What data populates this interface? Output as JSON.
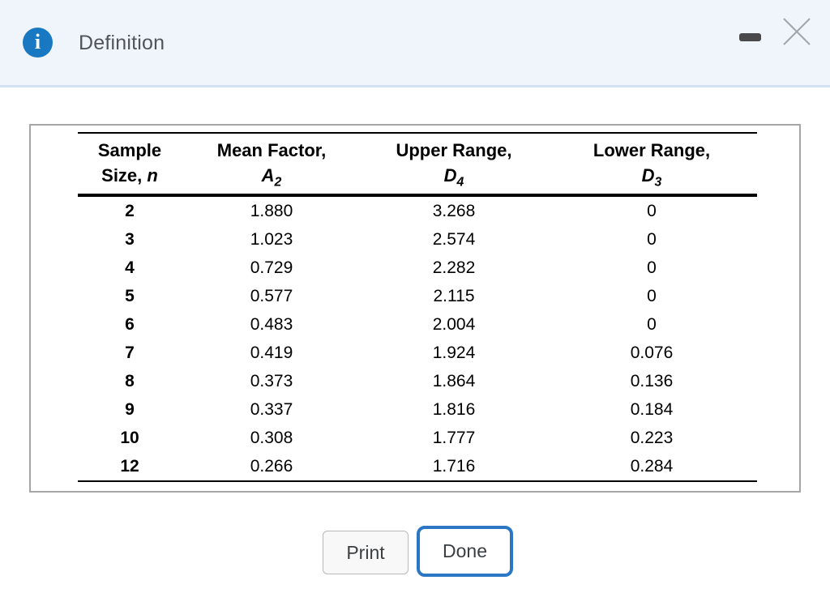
{
  "colors": {
    "accent_blue": "#2b77c4",
    "info_icon_blue": "#1878c2",
    "header_bg": "#f0f5fc",
    "header_border": "#d3e3f4"
  },
  "header": {
    "title": "Definition",
    "icons": {
      "info": "info-icon",
      "minimize": "minimize-icon",
      "close": "close-icon"
    },
    "info_glyph": "i"
  },
  "table": {
    "columns": [
      {
        "line1": "Sample",
        "line2_prefix": "Size, ",
        "symbol": "n",
        "subscript": ""
      },
      {
        "line1": "Mean Factor,",
        "line2_prefix": "",
        "symbol": "A",
        "subscript": "2"
      },
      {
        "line1": "Upper Range,",
        "line2_prefix": "",
        "symbol": "D",
        "subscript": "4"
      },
      {
        "line1": "Lower Range,",
        "line2_prefix": "",
        "symbol": "D",
        "subscript": "3"
      }
    ],
    "rows": [
      [
        "2",
        "1.880",
        "3.268",
        "0"
      ],
      [
        "3",
        "1.023",
        "2.574",
        "0"
      ],
      [
        "4",
        "0.729",
        "2.282",
        "0"
      ],
      [
        "5",
        "0.577",
        "2.115",
        "0"
      ],
      [
        "6",
        "0.483",
        "2.004",
        "0"
      ],
      [
        "7",
        "0.419",
        "1.924",
        "0.076"
      ],
      [
        "8",
        "0.373",
        "1.864",
        "0.136"
      ],
      [
        "9",
        "0.337",
        "1.816",
        "0.184"
      ],
      [
        "10",
        "0.308",
        "1.777",
        "0.223"
      ],
      [
        "12",
        "0.266",
        "1.716",
        "0.284"
      ]
    ]
  },
  "footer": {
    "print_label": "Print",
    "done_label": "Done"
  }
}
